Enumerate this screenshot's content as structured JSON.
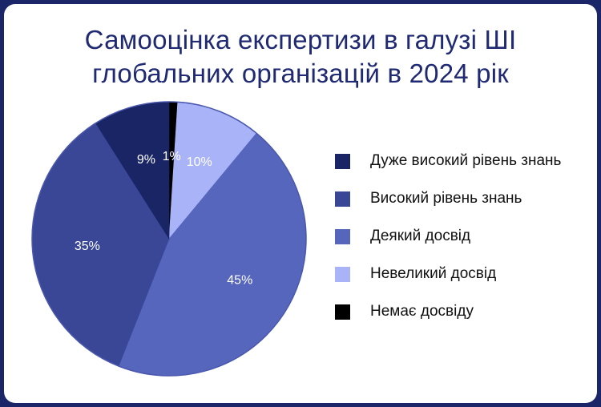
{
  "chart_data": {
    "type": "pie",
    "title": "Самооцінка експертизи в галузі ШІ глобальних організацій в 2024 рік",
    "title_lines": [
      "Самооцінка експертизи в галузі ШІ",
      "глобальних організацій в 2024 рік"
    ],
    "slices": [
      {
        "name": "Немає досвіду",
        "value": 1,
        "label": "1%",
        "color": "#000000"
      },
      {
        "name": "Невеликий досвід",
        "value": 10,
        "label": "10%",
        "color": "#a9b3f7"
      },
      {
        "name": "Деякий досвід",
        "value": 45,
        "label": "45%",
        "color": "#5666bd"
      },
      {
        "name": "Високий рівень знань",
        "value": 35,
        "label": "35%",
        "color": "#3a4797"
      },
      {
        "name": "Дуже високий рівень знань",
        "value": 9,
        "label": "9%",
        "color": "#1a2565"
      }
    ],
    "legend_order": [
      "Дуже високий рівень знань",
      "Високий рівень знань",
      "Деякий досвід",
      "Невеликий досвід",
      "Немає досвіду"
    ],
    "legend_position": "right"
  },
  "colors": {
    "frame": "#1b2668",
    "title": "#1f2a72",
    "slice_label": "#ffffff"
  }
}
